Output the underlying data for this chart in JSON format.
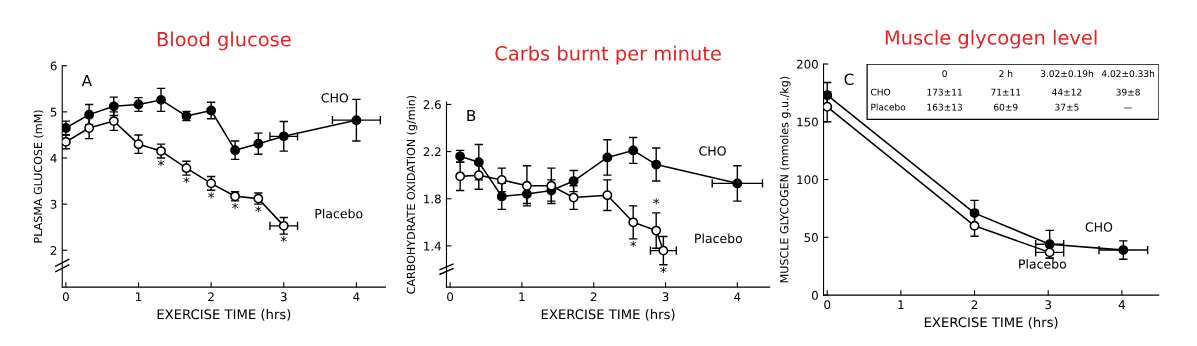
{
  "chart_data": [
    {
      "type": "line",
      "title": "Blood glucose",
      "xlabel": "EXERCISE TIME (hrs)",
      "ylabel": "PLASMA GLUCOSE (mM)",
      "xlim": [
        -0.05,
        4.4
      ],
      "xticks": [
        0,
        1,
        2,
        3,
        4
      ],
      "ylim": [
        1.2,
        6.0
      ],
      "yticks": [
        2,
        3,
        4,
        5,
        6
      ],
      "grid": false,
      "legend": false,
      "marker": "circle",
      "series": [
        {
          "name": "CHO",
          "color": "#000000",
          "x": [
            0,
            0.32,
            0.66,
            1.0,
            1.31,
            1.66,
            2.0,
            2.33,
            2.65,
            3.0,
            4.0
          ],
          "values": [
            4.65,
            4.94,
            5.12,
            5.16,
            5.26,
            4.91,
            5.03,
            4.17,
            4.31,
            4.47,
            4.82
          ],
          "errors": [
            0.15,
            0.22,
            0.2,
            0.15,
            0.25,
            0.1,
            0.18,
            0.2,
            0.23,
            0.32,
            0.45
          ],
          "xerrors": [
            null,
            null,
            null,
            null,
            null,
            null,
            null,
            null,
            null,
            0.19,
            0.33
          ]
        },
        {
          "name": "Placebo",
          "color": "#000000",
          "x": [
            0,
            0.32,
            0.66,
            1.0,
            1.31,
            1.66,
            2.0,
            2.33,
            2.65,
            3.0
          ],
          "values": [
            4.35,
            4.65,
            4.8,
            4.3,
            4.15,
            3.78,
            3.45,
            3.17,
            3.12,
            2.53
          ],
          "errors": [
            0.15,
            0.23,
            0.2,
            0.2,
            0.15,
            0.15,
            0.15,
            0.1,
            0.12,
            0.18
          ],
          "xerrors": [
            null,
            null,
            null,
            null,
            null,
            null,
            null,
            null,
            null,
            0.19
          ]
        }
      ],
      "annotations": [
        "A",
        "*",
        "*",
        "*",
        "*",
        "*",
        "*"
      ]
    },
    {
      "type": "line",
      "title": "Carbs burnt per minute",
      "xlabel": "EXERCISE TIME (hrs)",
      "ylabel": "CARBOHYDRATE OXIDATION (g/min)",
      "xlim": [
        -0.05,
        4.45
      ],
      "xticks": [
        0,
        1,
        2,
        3,
        4
      ],
      "ylim": [
        1.05,
        2.62
      ],
      "yticks": [
        1.4,
        1.8,
        2.2,
        2.6
      ],
      "grid": false,
      "legend": false,
      "marker": "circle",
      "series": [
        {
          "name": "CHO",
          "color": "#000000",
          "x": [
            0.14,
            0.4,
            0.72,
            1.07,
            1.41,
            1.72,
            2.19,
            2.55,
            2.87,
            4.0
          ],
          "values": [
            2.16,
            2.11,
            1.82,
            1.84,
            1.87,
            1.95,
            2.15,
            2.21,
            2.09,
            1.93
          ],
          "errors": [
            0.05,
            0.15,
            0.11,
            0.08,
            0.09,
            0.09,
            0.15,
            0.11,
            0.14,
            0.15
          ],
          "xerrors": [
            null,
            null,
            null,
            null,
            null,
            null,
            null,
            null,
            null,
            0.35
          ]
        },
        {
          "name": "Placebo",
          "color": "#000000",
          "x": [
            0.14,
            0.4,
            0.72,
            1.07,
            1.41,
            1.72,
            2.19,
            2.55,
            2.87,
            2.97
          ],
          "values": [
            1.99,
            2.0,
            1.96,
            1.91,
            1.91,
            1.81,
            1.83,
            1.6,
            1.53,
            1.36
          ],
          "errors": [
            0.12,
            0.12,
            0.1,
            0.17,
            0.15,
            0.1,
            0.13,
            0.14,
            0.15,
            0.12
          ],
          "xerrors": [
            null,
            null,
            null,
            null,
            null,
            null,
            null,
            null,
            null,
            0.18
          ]
        }
      ],
      "annotations": [
        "B",
        "*",
        "*",
        "*"
      ]
    },
    {
      "type": "line",
      "title": "Muscle glycogen level",
      "xlabel": "EXERCISE TIME (hrs)",
      "ylabel": "MUSCLE GLYCOGEN (mmoles g.u./kg)",
      "xlim": [
        -0.05,
        4.5
      ],
      "xticks": [
        0,
        1,
        2,
        3,
        4
      ],
      "ylim": [
        0,
        200
      ],
      "yticks": [
        0,
        50,
        100,
        150,
        200
      ],
      "grid": false,
      "legend": false,
      "marker": "circle",
      "series": [
        {
          "name": "CHO",
          "color": "#000000",
          "x": [
            0,
            2,
            3.02,
            4.02
          ],
          "values": [
            173,
            71,
            44,
            39
          ],
          "errors": [
            11,
            11,
            12,
            8
          ],
          "xerrors": [
            null,
            null,
            0.19,
            0.33
          ]
        },
        {
          "name": "Placebo",
          "color": "#000000",
          "x": [
            0,
            2,
            3.02
          ],
          "values": [
            163,
            60,
            37
          ],
          "errors": [
            13,
            9,
            5
          ],
          "xerrors": [
            null,
            null,
            0.19
          ]
        }
      ],
      "annotations": [
        "C",
        "0",
        "2 h",
        "3.02±0.19h",
        "4.02±0.33h",
        "CHO",
        "173±11",
        "71±11",
        "44±12",
        "39±8",
        "Placebo",
        "163±13",
        "60±9",
        "37±5",
        "—"
      ]
    }
  ]
}
